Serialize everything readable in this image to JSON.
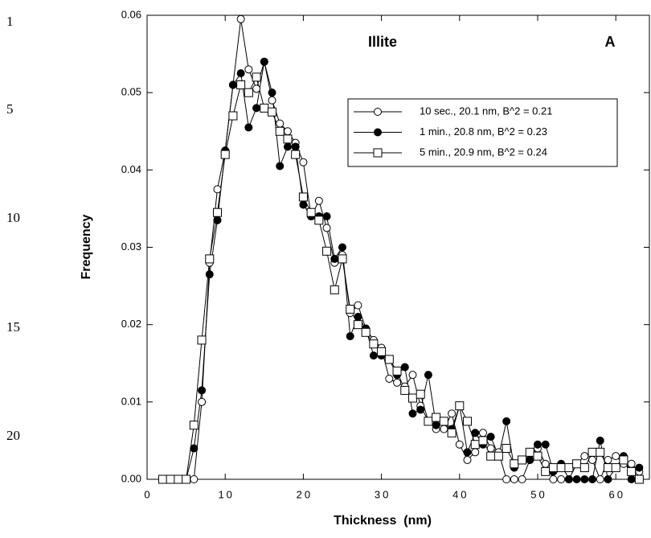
{
  "line_numbers": [
    "1",
    "5",
    "10",
    "15",
    "20"
  ],
  "chart_data": {
    "type": "line",
    "xlabel": "Thickness  (nm)",
    "ylabel": "Frequency",
    "annotations": [
      "Illite",
      "A"
    ],
    "x": [
      2,
      3,
      4,
      5,
      6,
      7,
      8,
      9,
      10,
      11,
      12,
      13,
      14,
      15,
      16,
      17,
      18,
      19,
      20,
      21,
      22,
      23,
      24,
      25,
      26,
      27,
      28,
      29,
      30,
      31,
      32,
      33,
      34,
      35,
      36,
      37,
      38,
      39,
      40,
      41,
      42,
      43,
      44,
      45,
      46,
      47,
      48,
      49,
      50,
      51,
      52,
      53,
      54,
      55,
      56,
      57,
      58,
      59,
      60,
      61,
      62,
      63
    ],
    "series": [
      {
        "name": "10 sec., 20.1 nm, B^2 = 0.21",
        "color": "#000000",
        "marker": "circle",
        "marker_fill": "#ffffff",
        "values": [
          0,
          0,
          0,
          0,
          0,
          0.01,
          0.028,
          0.0375,
          0.0425,
          0.051,
          0.0595,
          0.053,
          0.0505,
          0.054,
          0.049,
          0.046,
          0.045,
          0.0435,
          0.041,
          0.034,
          0.036,
          0.0325,
          0.028,
          0.029,
          0.0215,
          0.0225,
          0.0195,
          0.018,
          0.017,
          0.013,
          0.0125,
          0.012,
          0.0135,
          0.0095,
          0.0075,
          0.0065,
          0.0065,
          0.0085,
          0.0045,
          0.0025,
          0.0035,
          0.006,
          0.004,
          0.0035,
          0,
          0,
          0,
          0.0025,
          0.004,
          0.002,
          0,
          0,
          0,
          0.002,
          0.003,
          0.0025,
          0,
          0.0025,
          0.003,
          0.002,
          0.002,
          0.001
        ]
      },
      {
        "name": "1 min., 20.8 nm, B^2 = 0.23",
        "color": "#000000",
        "marker": "circle",
        "marker_fill": "#000000",
        "values": [
          0,
          0,
          0,
          0,
          0.004,
          0.0115,
          0.0265,
          0.0335,
          0.0425,
          0.051,
          0.0525,
          0.0455,
          0.048,
          0.054,
          0.05,
          0.0405,
          0.043,
          0.043,
          0.0355,
          0.034,
          0.034,
          0.034,
          0.0285,
          0.03,
          0.0185,
          0.021,
          0.0195,
          0.016,
          0.016,
          0.0155,
          0.0135,
          0.0145,
          0.0085,
          0.009,
          0.0135,
          0.007,
          0.0075,
          0.0065,
          0.0095,
          0.0035,
          0.006,
          0.0045,
          0.0055,
          0.003,
          0.0075,
          0.0015,
          0.0025,
          0.0025,
          0.0045,
          0.0045,
          0.001,
          0.002,
          0,
          0,
          0,
          0,
          0.005,
          0,
          0.0015,
          0.003,
          0,
          0.0015
        ]
      },
      {
        "name": "5 min., 20.9 nm, B^2 = 0.24",
        "color": "#000000",
        "marker": "square",
        "marker_fill": "#ffffff",
        "values": [
          0,
          0,
          0,
          0,
          0.007,
          0.018,
          0.0285,
          0.0345,
          0.042,
          0.047,
          0.051,
          0.05,
          0.052,
          0.048,
          0.0475,
          0.045,
          0.044,
          0.042,
          0.0365,
          0.0345,
          0.0335,
          0.0295,
          0.0245,
          0.0285,
          0.022,
          0.02,
          0.019,
          0.0175,
          0.0165,
          0.0155,
          0.014,
          0.0115,
          0.0105,
          0.011,
          0.0075,
          0.008,
          0.0075,
          0.006,
          0.0095,
          0.0075,
          0.0045,
          0.005,
          0.003,
          0.003,
          0.004,
          0.002,
          0.0025,
          0.0035,
          0.003,
          0.001,
          0.0015,
          0.0015,
          0.0015,
          0.002,
          0.0015,
          0.0035,
          0.0035,
          0.0015,
          0.0015,
          0.0025,
          0.001,
          0
        ]
      }
    ],
    "xlim": [
      0,
      64.3
    ],
    "xticks": [
      0,
      10,
      20,
      30,
      40,
      50,
      60
    ],
    "ylim": [
      0,
      0.06
    ],
    "yticks": [
      {
        "value": 0,
        "label": "0.00"
      },
      0.01,
      0.02,
      0.03,
      0.04,
      0.05,
      0.06
    ],
    "legend": "upper right",
    "grid": false
  }
}
